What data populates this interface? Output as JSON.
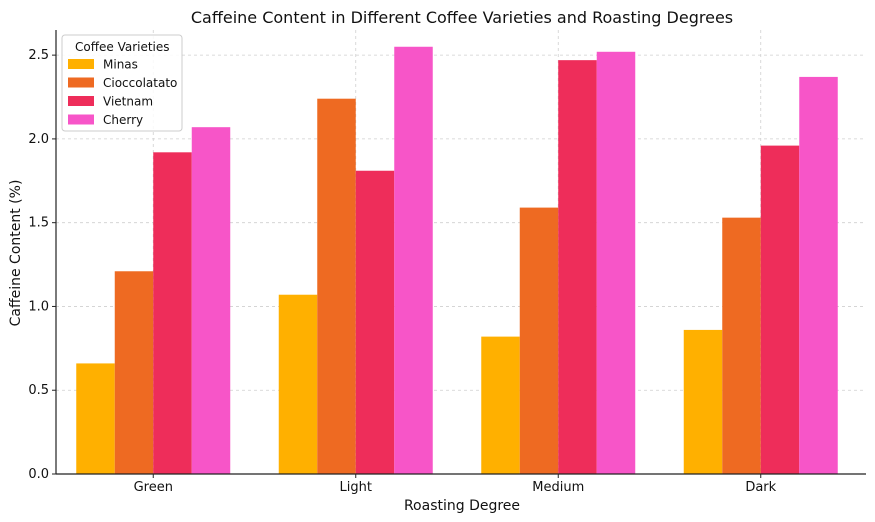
{
  "chart_data": {
    "type": "bar",
    "title": "Caffeine Content in Different Coffee Varieties and Roasting Degrees",
    "xlabel": "Roasting Degree",
    "ylabel": "Caffeine Content (%)",
    "categories": [
      "Green",
      "Light",
      "Medium",
      "Dark"
    ],
    "ylim": [
      0,
      2.65
    ],
    "yticks": [
      "0.0",
      "0.5",
      "1.0",
      "1.5",
      "2.0",
      "2.5"
    ],
    "grid": true,
    "legend": {
      "title": "Coffee Varieties",
      "placement": "top-left"
    },
    "series": [
      {
        "name": "Minas",
        "color": "#FFB000",
        "values": [
          0.66,
          1.07,
          0.82,
          0.86
        ]
      },
      {
        "name": "Cioccolatato",
        "color": "#EE6A22",
        "values": [
          1.21,
          2.24,
          1.59,
          1.53
        ]
      },
      {
        "name": "Vietnam",
        "color": "#EE2D5A",
        "values": [
          1.92,
          1.81,
          2.47,
          1.96
        ]
      },
      {
        "name": "Cherry",
        "color": "#F755C8",
        "values": [
          2.07,
          2.55,
          2.52,
          2.37
        ]
      }
    ]
  }
}
